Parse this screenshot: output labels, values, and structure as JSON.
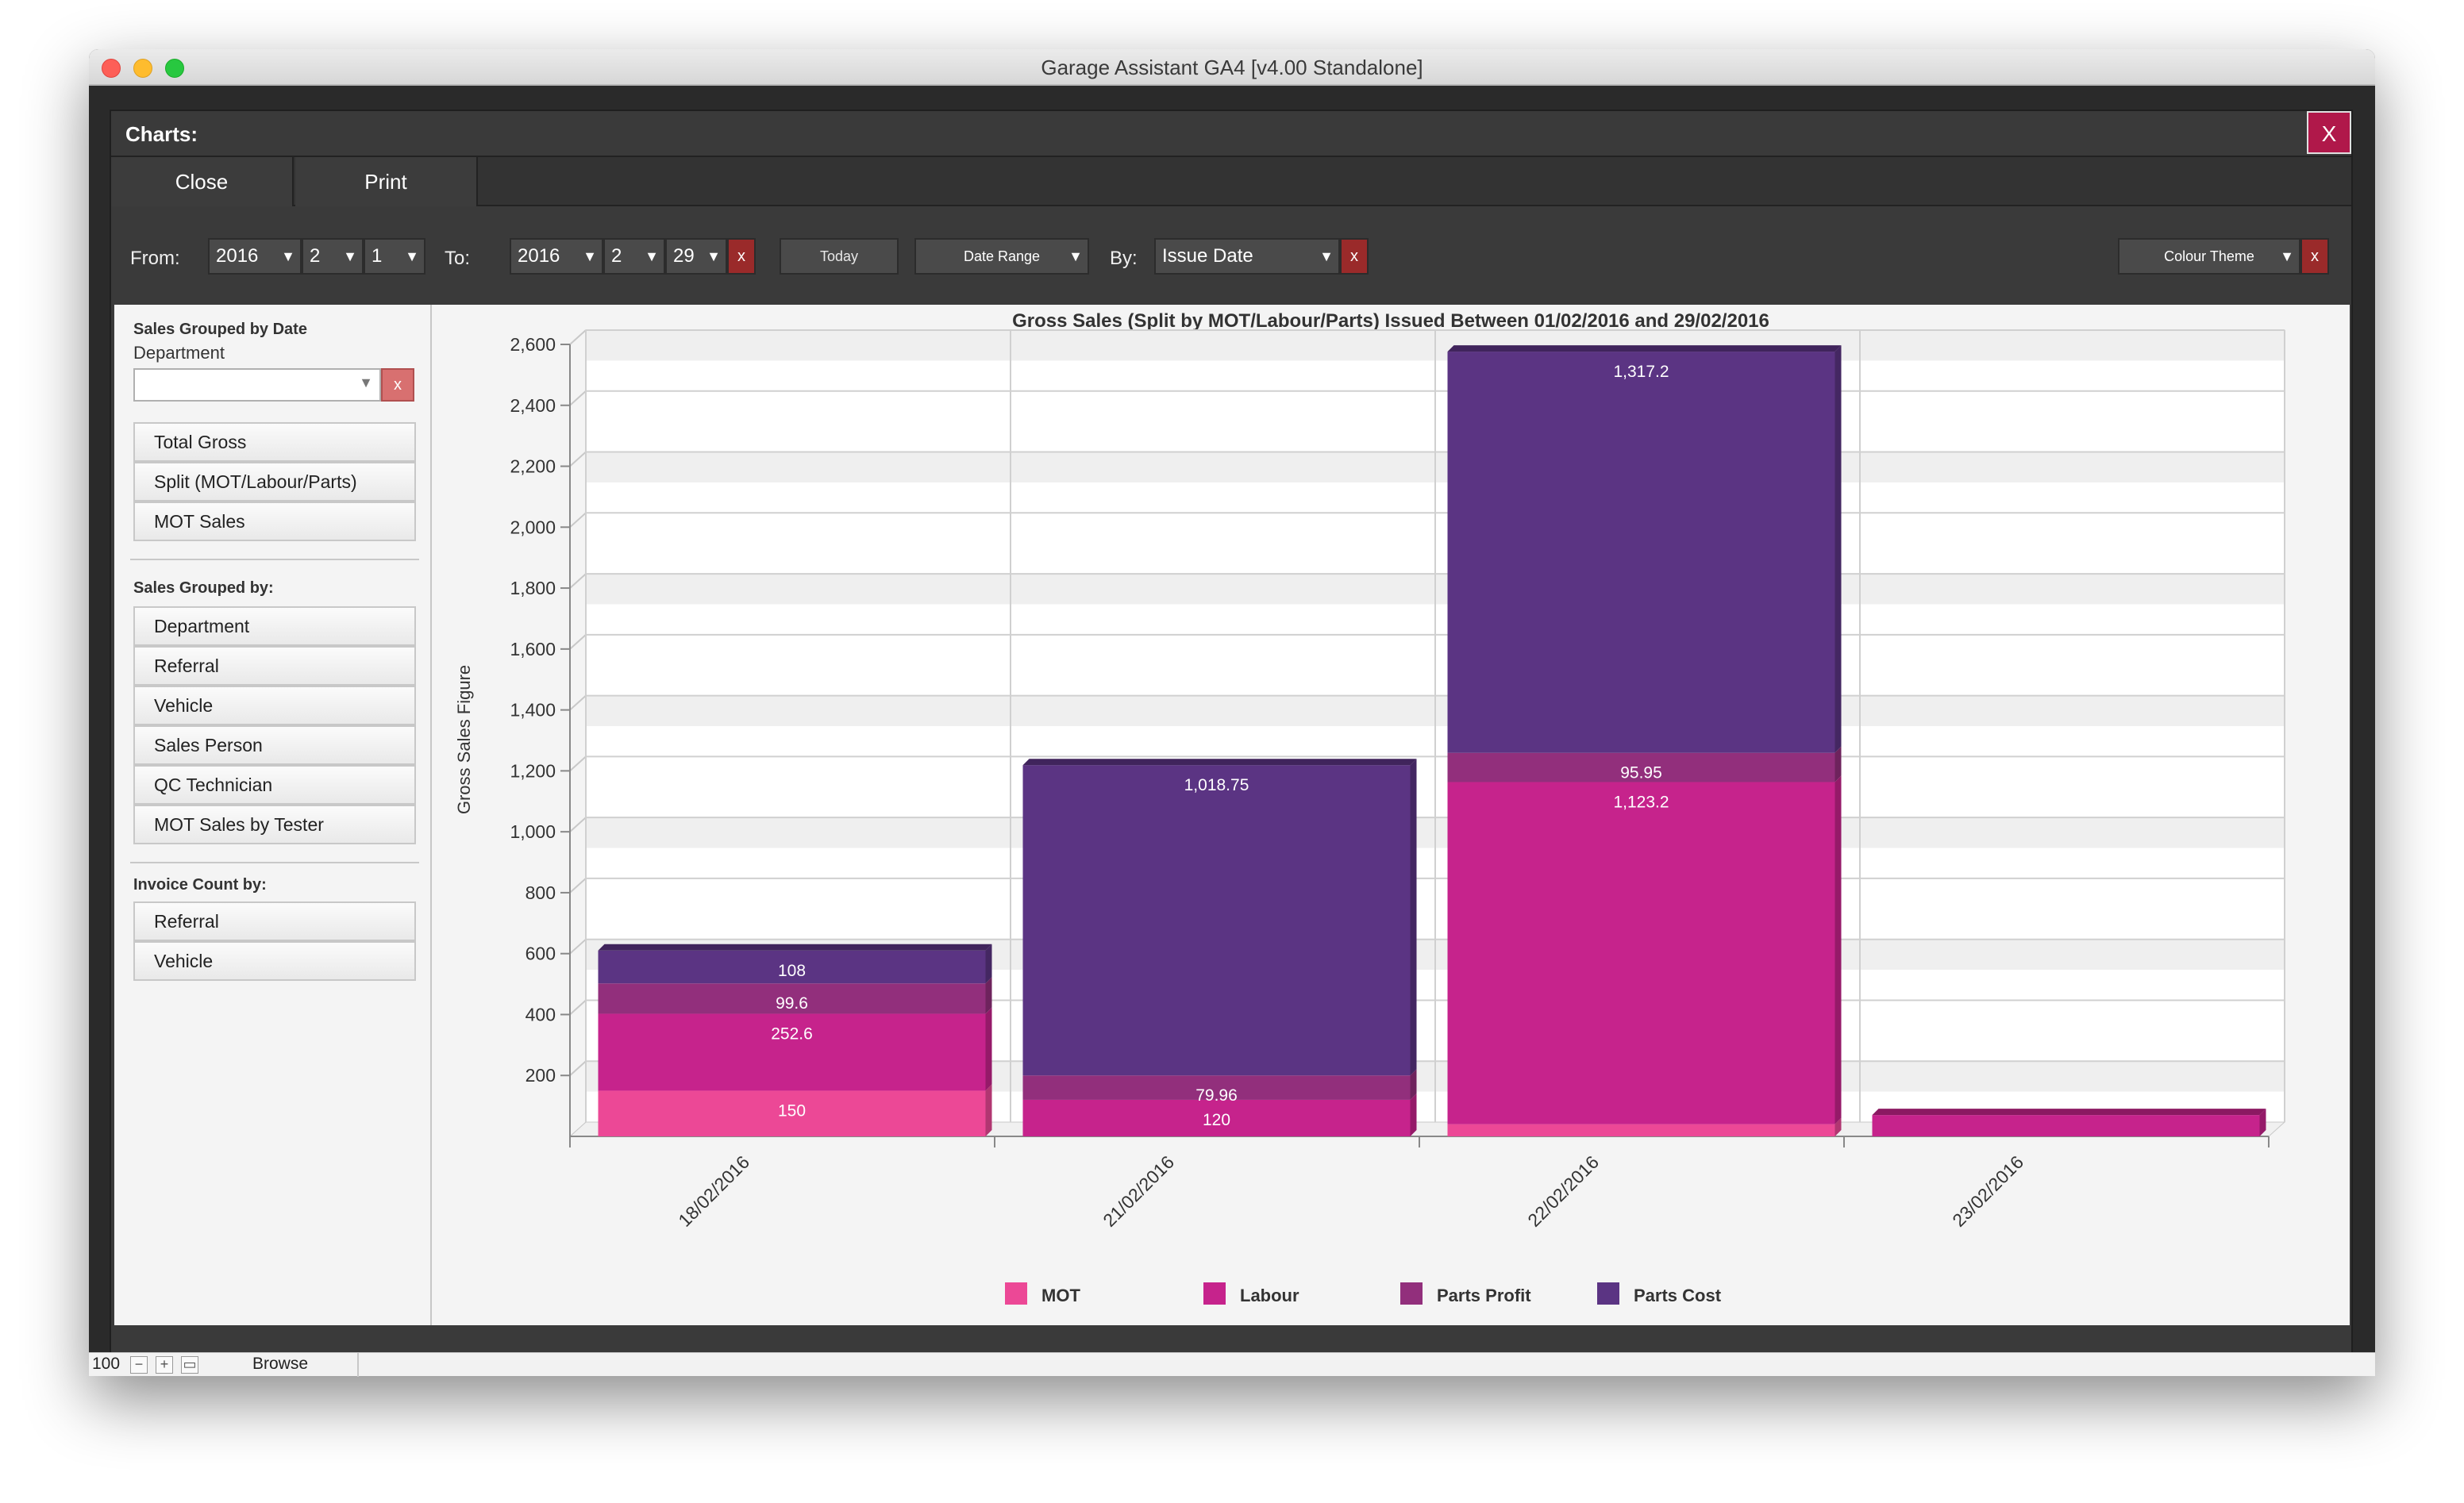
{
  "window": {
    "title": "Garage Assistant GA4 [v4.00 Standalone]"
  },
  "dialog": {
    "title": "Charts:",
    "close_x": "X",
    "close_label": "Close",
    "print_label": "Print"
  },
  "filters": {
    "from_label": "From:",
    "from_year": "2016",
    "from_month": "2",
    "from_day": "1",
    "to_label": "To:",
    "to_year": "2016",
    "to_month": "2",
    "to_day": "29",
    "clear_x": "x",
    "today_label": "Today",
    "date_range_label": "Date Range",
    "by_label": "By:",
    "by_value": "Issue Date",
    "colour_theme_label": "Colour Theme",
    "colour_theme_clear_x": "x"
  },
  "sidebar": {
    "group1_heading": "Sales Grouped by Date",
    "department_label": "Department",
    "department_value": "",
    "department_clear": "x",
    "group1_buttons": [
      "Total Gross",
      "Split  (MOT/Labour/Parts)",
      "MOT Sales"
    ],
    "group2_heading": "Sales Grouped by:",
    "group2_buttons": [
      "Department",
      "Referral",
      "Vehicle",
      "Sales Person",
      "QC Technician",
      "MOT Sales by Tester"
    ],
    "group3_heading": "Invoice Count by:",
    "group3_buttons": [
      "Referral",
      "Vehicle"
    ]
  },
  "chart_data": {
    "type": "bar",
    "stacked": true,
    "title": "Gross Sales (Split by MOT/Labour/Parts)  Issued Between 01/02/2016 and 29/02/2016",
    "xlabel": "",
    "ylabel": "Gross Sales Figure",
    "ylim": [
      0,
      2600
    ],
    "yticks": [
      200,
      400,
      600,
      800,
      1000,
      1200,
      1400,
      1600,
      1800,
      2000,
      2200,
      2400,
      2600
    ],
    "ytick_labels": [
      "200",
      "400",
      "600",
      "800",
      "1,000",
      "1,200",
      "1,400",
      "1,600",
      "1,800",
      "2,000",
      "2,200",
      "2,400",
      "2,600"
    ],
    "categories": [
      "18/02/2016",
      "21/02/2016",
      "22/02/2016",
      "23/02/2016"
    ],
    "series": [
      {
        "name": "MOT",
        "color": "#ec4896",
        "values": [
          150,
          0,
          40,
          0
        ],
        "labels": [
          "150",
          "",
          "",
          ""
        ]
      },
      {
        "name": "Labour",
        "color": "#c6238c",
        "values": [
          252.6,
          120,
          1123.2,
          70
        ],
        "labels": [
          "252.6",
          "120",
          "1,123.2",
          ""
        ]
      },
      {
        "name": "Parts Profit",
        "color": "#922f7c",
        "values": [
          99.6,
          79.96,
          95.95,
          0
        ],
        "labels": [
          "99.6",
          "79.96",
          "95.95",
          ""
        ]
      },
      {
        "name": "Parts Cost",
        "color": "#5b3483",
        "values": [
          108,
          1018.75,
          1317.2,
          0
        ],
        "labels": [
          "108",
          "1,018.75",
          "1,317.2",
          ""
        ]
      }
    ],
    "grid": true,
    "legend_position": "bottom"
  },
  "status": {
    "zoom": "100",
    "mode": "Browse"
  }
}
